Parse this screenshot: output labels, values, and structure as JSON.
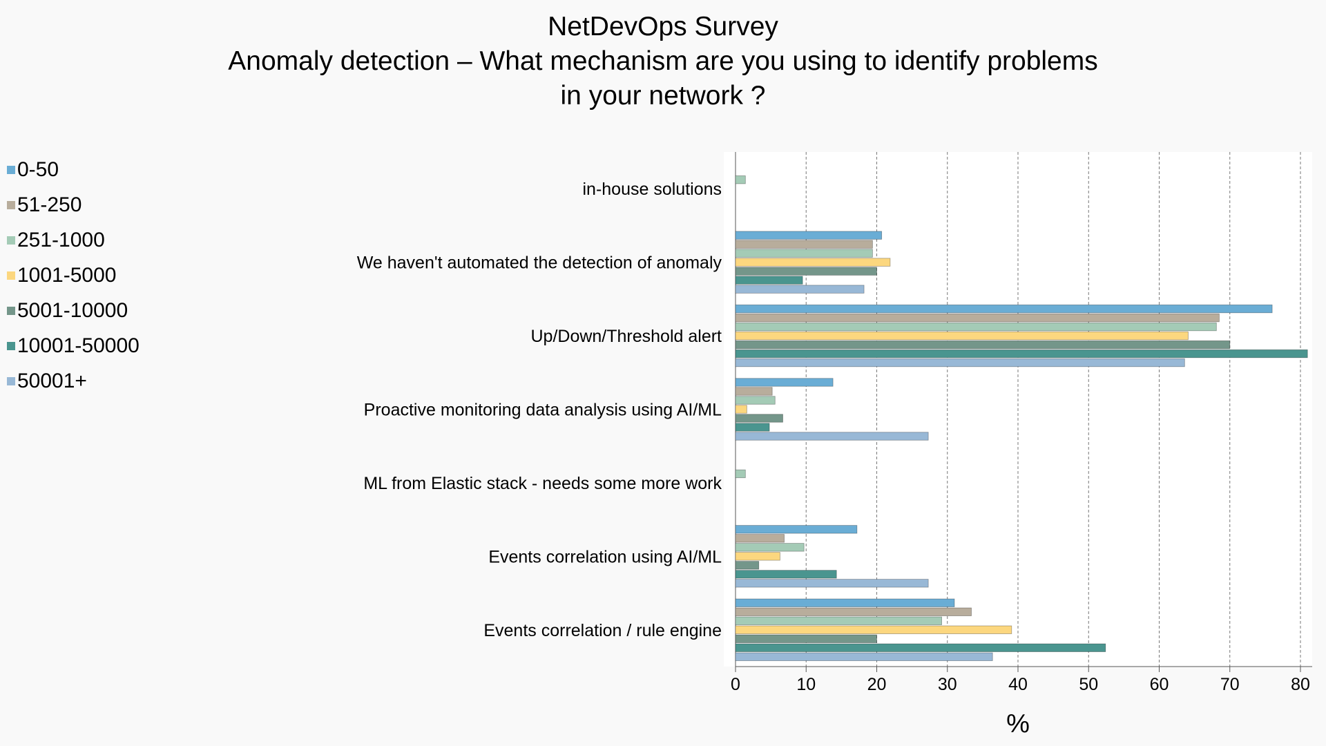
{
  "chart_data": {
    "type": "bar",
    "orientation": "horizontal",
    "title": "NetDevOps Survey",
    "subtitle_lines": [
      "Anomaly detection – What mechanism are you using to identify problems",
      "in your network ?"
    ],
    "xlabel": "%",
    "ylabel": "",
    "xlim": [
      0,
      82
    ],
    "xticks": [
      "0",
      "10",
      "20",
      "30",
      "40",
      "50",
      "60",
      "70",
      "80"
    ],
    "grid": "vertical-dashed",
    "legend_position": "left",
    "categories": [
      "in-house solutions",
      "We haven't automated the detection of anomaly",
      "Up/Down/Threshold alert",
      "Proactive monitoring data analysis using AI/ML",
      "ML from Elastic stack - needs some more work",
      "Events correlation using AI/ML",
      "Events correlation / rule engine"
    ],
    "series": [
      {
        "name": "0-50",
        "color": "#6aadd5",
        "values": [
          0,
          20.7,
          76,
          13.8,
          0,
          17.2,
          31
        ]
      },
      {
        "name": "51-250",
        "color": "#b8ad9c",
        "values": [
          0,
          19.4,
          68.5,
          5.2,
          0,
          6.9,
          33.4
        ]
      },
      {
        "name": "251-1000",
        "color": "#a4cbb6",
        "values": [
          1.4,
          19.4,
          68.1,
          5.6,
          1.4,
          9.7,
          29.2
        ]
      },
      {
        "name": "1001-5000",
        "color": "#fcd77f",
        "values": [
          0,
          21.9,
          64.1,
          1.6,
          0,
          6.3,
          39.1
        ]
      },
      {
        "name": "5001-10000",
        "color": "#74968a",
        "values": [
          0,
          20,
          70,
          6.7,
          0,
          3.3,
          20
        ]
      },
      {
        "name": "10001-50000",
        "color": "#4a958f",
        "values": [
          0,
          9.5,
          81,
          4.8,
          0,
          14.3,
          52.4
        ]
      },
      {
        "name": "50001+",
        "color": "#98b8d6",
        "values": [
          0,
          18.2,
          63.6,
          27.3,
          0,
          27.3,
          36.4
        ]
      }
    ]
  }
}
